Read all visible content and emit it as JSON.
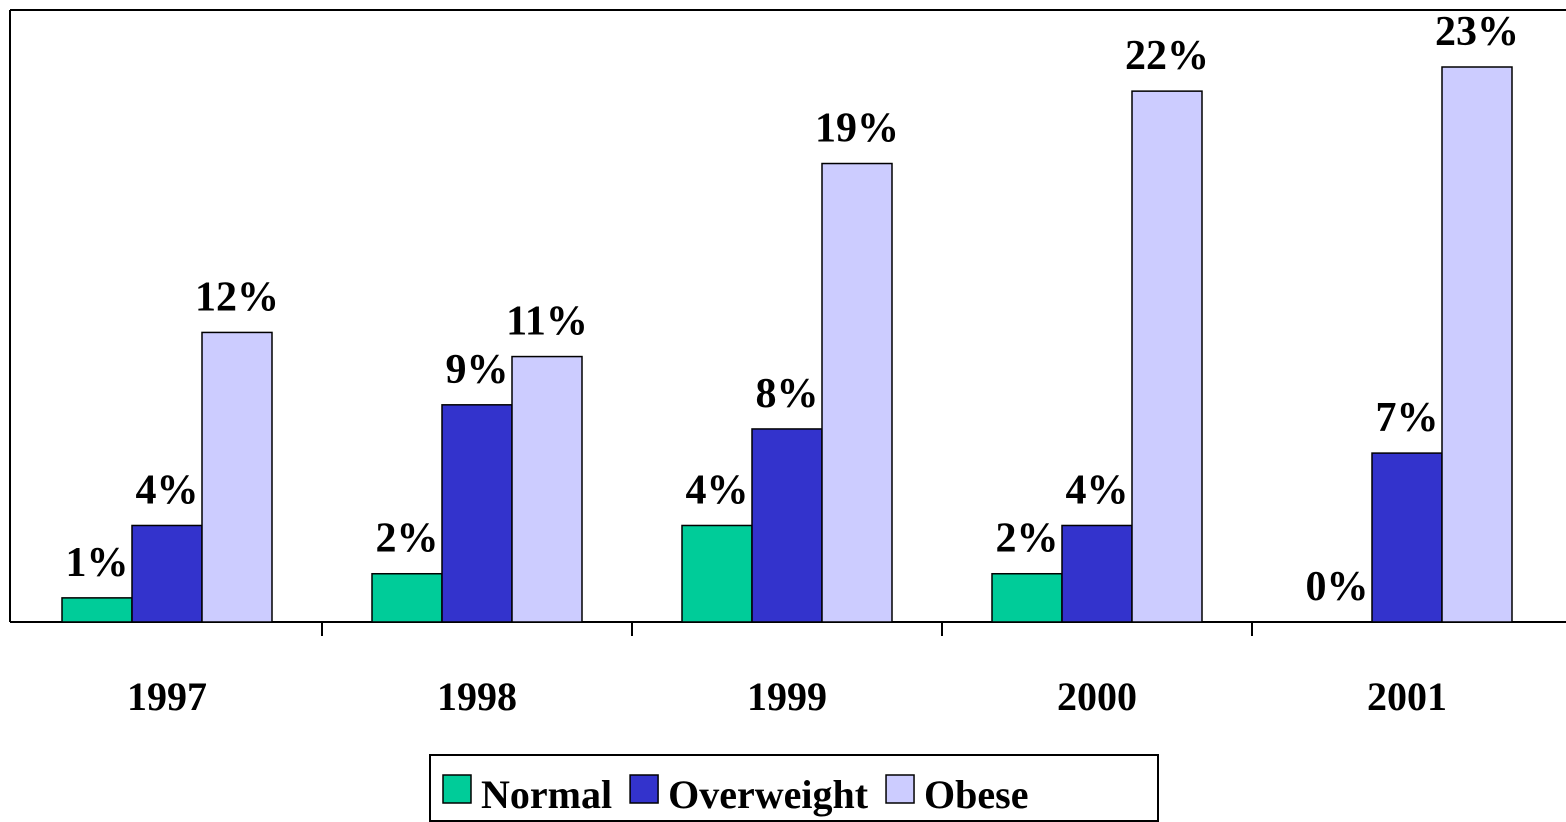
{
  "chart_data": {
    "type": "bar",
    "categories": [
      "1997",
      "1998",
      "1999",
      "2000",
      "2001"
    ],
    "series": [
      {
        "name": "Normal",
        "color": "#00cc99",
        "values": [
          1,
          2,
          4,
          2,
          0
        ],
        "value_labels": [
          "1%",
          "2%",
          "4%",
          "2%",
          "0%"
        ]
      },
      {
        "name": "Overweight",
        "color": "#3333cc",
        "values": [
          4,
          9,
          8,
          4,
          7
        ],
        "value_labels": [
          "4%",
          "9%",
          "8%",
          "4%",
          "7%"
        ]
      },
      {
        "name": "Obese",
        "color": "#ccccff",
        "values": [
          12,
          11,
          19,
          22,
          23
        ],
        "value_labels": [
          "12%",
          "11%",
          "19%",
          "22%",
          "23%"
        ]
      }
    ],
    "legend": "bottom"
  }
}
